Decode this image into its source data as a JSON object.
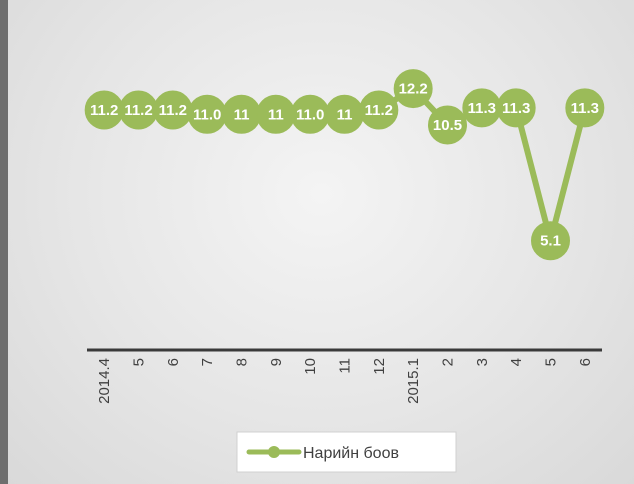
{
  "chart_data": {
    "type": "line",
    "categories": [
      "2014.4",
      "5",
      "6",
      "7",
      "8",
      "9",
      "10",
      "11",
      "12",
      "2015.1",
      "2",
      "3",
      "4",
      "5",
      "6"
    ],
    "series": [
      {
        "name": "Нарийн боов",
        "values": [
          11.2,
          11.2,
          11.2,
          11.0,
          11,
          11,
          11.0,
          11,
          11.2,
          12.2,
          10.5,
          11.3,
          11.3,
          5.1,
          11.3
        ],
        "labels": [
          "11.2",
          "11.2",
          "11.2",
          "11.0",
          "11",
          "11",
          "11.0",
          "11",
          "11.2",
          "12.2",
          "10.5",
          "11.3",
          "11.3",
          "5.1",
          "11.3"
        ],
        "color": "#9bbb59"
      }
    ],
    "ylim": [
      0,
      14
    ],
    "grid": false,
    "legend_position": "bottom"
  }
}
